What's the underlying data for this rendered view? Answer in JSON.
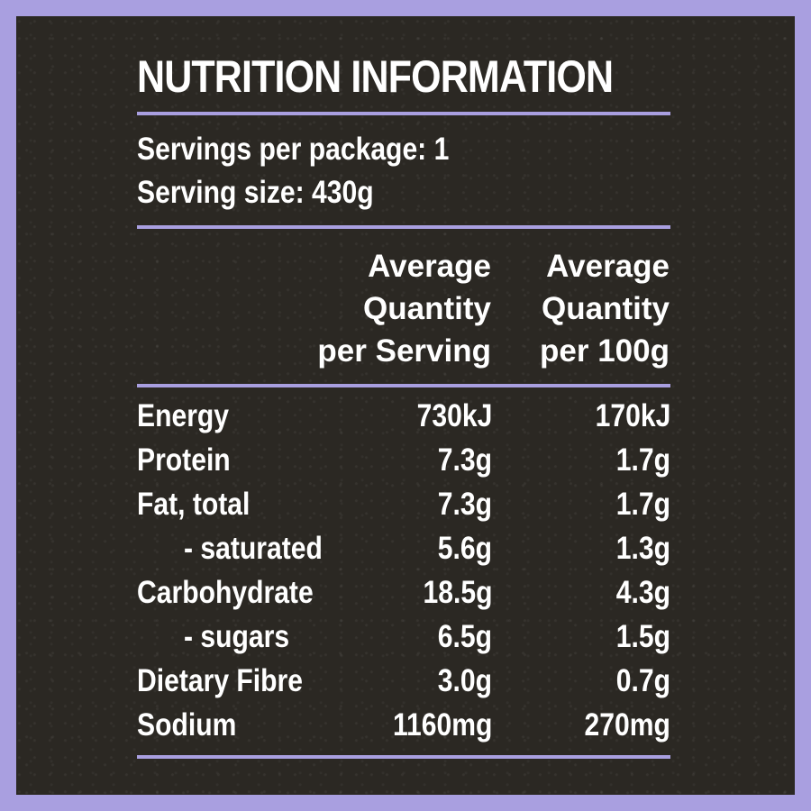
{
  "title": "NUTRITION INFORMATION",
  "servings_per_package": "Servings per package: 1",
  "serving_size": "Serving size: 430g",
  "columns": {
    "per_serving": [
      "Average",
      "Quantity",
      "per Serving"
    ],
    "per_100g": [
      "Average",
      "Quantity",
      "per 100g"
    ]
  },
  "rows": [
    {
      "name": "Energy",
      "per_serving": "730kJ",
      "per_100g": "170kJ"
    },
    {
      "name": "Protein",
      "per_serving": "7.3g",
      "per_100g": "1.7g"
    },
    {
      "name": "Fat, total",
      "per_serving": "7.3g",
      "per_100g": "1.7g"
    },
    {
      "name": "- saturated",
      "per_serving": "5.6g",
      "per_100g": "1.3g"
    },
    {
      "name": "Carbohydrate",
      "per_serving": "18.5g",
      "per_100g": "4.3g"
    },
    {
      "name": "- sugars",
      "per_serving": "6.5g",
      "per_100g": "1.5g"
    },
    {
      "name": "Dietary Fibre",
      "per_serving": "3.0g",
      "per_100g": "0.7g"
    },
    {
      "name": "Sodium",
      "per_serving": "1160mg",
      "per_100g": "270mg"
    }
  ],
  "colors": {
    "accent": "#a99fe0",
    "background": "#2b2823",
    "text": "#ffffff"
  }
}
